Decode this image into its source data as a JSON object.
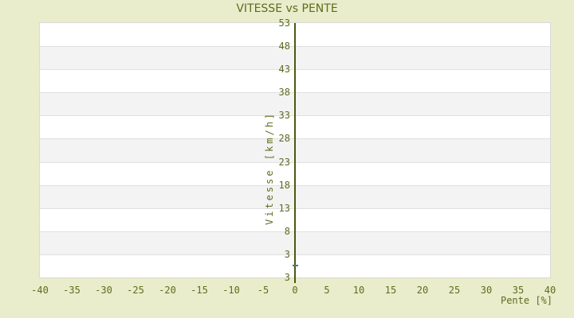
{
  "page": {
    "background_color": "#e9edcb"
  },
  "chart_data": {
    "type": "scatter",
    "title": "VITESSE vs PENTE",
    "xlabel": "Pente [%]",
    "ylabel": "Vitesse [km/h]",
    "xlim": [
      -40,
      40
    ],
    "xticks": [
      -40,
      -35,
      -30,
      -25,
      -20,
      -15,
      -10,
      -5,
      0,
      5,
      10,
      15,
      20,
      25,
      30,
      35,
      40
    ],
    "yticks_top_to_bottom": [
      53,
      48,
      43,
      38,
      33,
      28,
      23,
      18,
      13,
      8,
      3
    ],
    "y_axis_end_label": "3",
    "y_units_per_band": 5,
    "y_bottom_value": 3,
    "grid": "horizontal alternating bands, no vertical gridlines",
    "legend": "none",
    "axis_at_x": 0,
    "series": [
      {
        "name": "Vitesse",
        "marker": "horizontal-dash",
        "color": "#3d7aa0",
        "points": [
          {
            "pente": 0,
            "vitesse": 5.5
          }
        ]
      }
    ],
    "colors": {
      "background": "#e9edcb",
      "text_olive": "#5e6c1e",
      "axis_line": "#4c590e",
      "band_white": "#ffffff",
      "band_gray": "#f3f3f3",
      "gridline": "#e0e0e0",
      "plot_border": "#d9d9d9",
      "marker": "#3d7aa0"
    }
  }
}
